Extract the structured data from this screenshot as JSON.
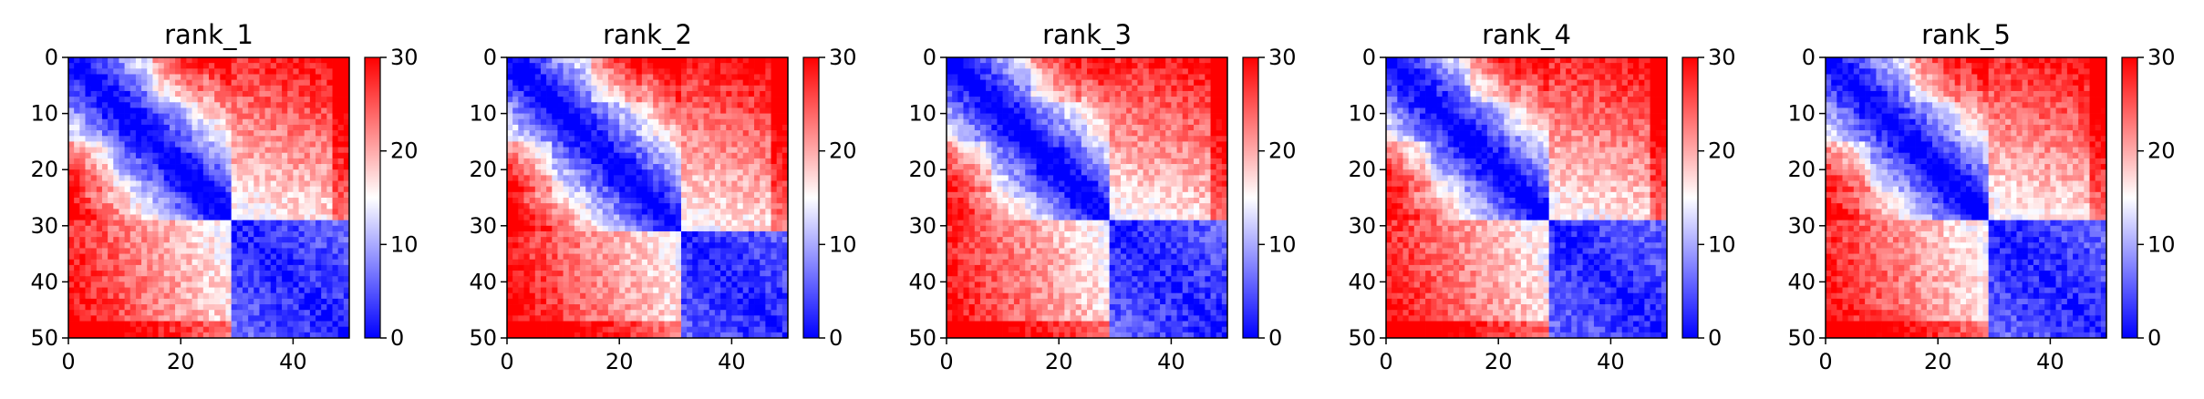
{
  "chart_data": [
    {
      "type": "heatmap",
      "title": "rank_1",
      "xlim": [
        0,
        50
      ],
      "ylim": [
        50,
        0
      ],
      "x_ticks": [
        "0",
        "20",
        "40"
      ],
      "y_ticks": [
        "0",
        "10",
        "20",
        "30",
        "40",
        "50"
      ],
      "colorbar": {
        "range": [
          0,
          30
        ],
        "ticks": [
          "0",
          "10",
          "20",
          "30"
        ],
        "colors": [
          "#0000ff",
          "#ffffff",
          "#ff0000"
        ]
      },
      "domains": [
        [
          0,
          29
        ],
        [
          30,
          50
        ]
      ],
      "grid_size": 50
    },
    {
      "type": "heatmap",
      "title": "rank_2",
      "xlim": [
        0,
        50
      ],
      "ylim": [
        50,
        0
      ],
      "x_ticks": [
        "0",
        "20",
        "40"
      ],
      "y_ticks": [
        "0",
        "10",
        "20",
        "30",
        "40",
        "50"
      ],
      "colorbar": {
        "range": [
          0,
          30
        ],
        "ticks": [
          "0",
          "10",
          "20",
          "30"
        ],
        "colors": [
          "#0000ff",
          "#ffffff",
          "#ff0000"
        ]
      },
      "domains": [
        [
          0,
          31
        ],
        [
          32,
          50
        ]
      ],
      "grid_size": 50
    },
    {
      "type": "heatmap",
      "title": "rank_3",
      "xlim": [
        0,
        50
      ],
      "ylim": [
        50,
        0
      ],
      "x_ticks": [
        "0",
        "20",
        "40"
      ],
      "y_ticks": [
        "0",
        "10",
        "20",
        "30",
        "40",
        "50"
      ],
      "colorbar": {
        "range": [
          0,
          30
        ],
        "ticks": [
          "0",
          "10",
          "20",
          "30"
        ],
        "colors": [
          "#0000ff",
          "#ffffff",
          "#ff0000"
        ]
      },
      "domains": [
        [
          0,
          29
        ],
        [
          30,
          50
        ]
      ],
      "grid_size": 50
    },
    {
      "type": "heatmap",
      "title": "rank_4",
      "xlim": [
        0,
        50
      ],
      "ylim": [
        50,
        0
      ],
      "x_ticks": [
        "0",
        "20",
        "40"
      ],
      "y_ticks": [
        "0",
        "10",
        "20",
        "30",
        "40",
        "50"
      ],
      "colorbar": {
        "range": [
          0,
          30
        ],
        "ticks": [
          "0",
          "10",
          "20",
          "30"
        ],
        "colors": [
          "#0000ff",
          "#ffffff",
          "#ff0000"
        ]
      },
      "domains": [
        [
          0,
          29
        ],
        [
          30,
          50
        ]
      ],
      "grid_size": 50
    },
    {
      "type": "heatmap",
      "title": "rank_5",
      "xlim": [
        0,
        50
      ],
      "ylim": [
        50,
        0
      ],
      "x_ticks": [
        "0",
        "20",
        "40"
      ],
      "y_ticks": [
        "0",
        "10",
        "20",
        "30",
        "40",
        "50"
      ],
      "colorbar": {
        "range": [
          0,
          30
        ],
        "ticks": [
          "0",
          "10",
          "20",
          "30"
        ],
        "colors": [
          "#0000ff",
          "#ffffff",
          "#ff0000"
        ]
      },
      "domains": [
        [
          0,
          29
        ],
        [
          30,
          50
        ]
      ],
      "grid_size": 50
    }
  ]
}
